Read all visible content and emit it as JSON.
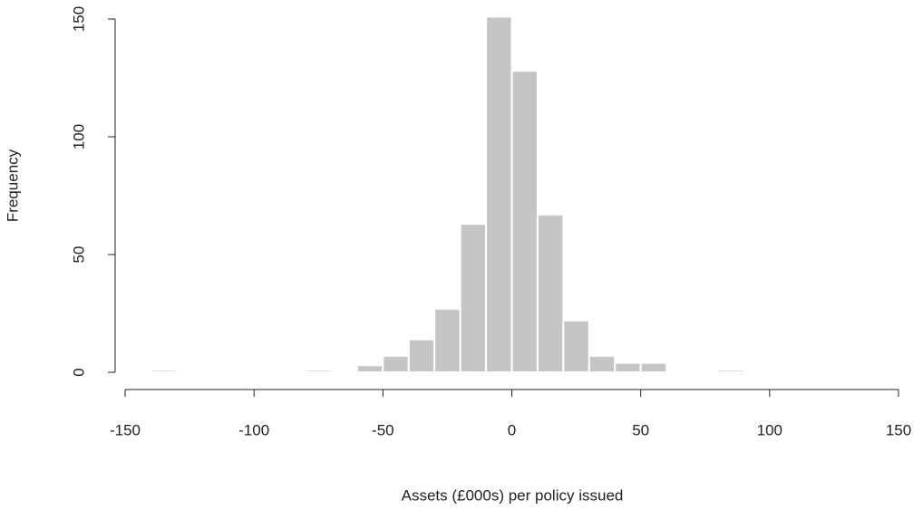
{
  "chart_data": {
    "type": "histogram",
    "xlabel": "Assets (£000s) per policy issued",
    "ylabel": "Frequency",
    "bins": [
      -150,
      -140,
      -130,
      -120,
      -110,
      -100,
      -90,
      -80,
      -70,
      -60,
      -50,
      -40,
      -30,
      -20,
      -10,
      0,
      10,
      20,
      30,
      40,
      50,
      60,
      70,
      80,
      90,
      100,
      110,
      120,
      130,
      140,
      150
    ],
    "values": [
      0,
      1,
      0,
      0,
      0,
      0,
      0,
      1,
      0,
      3,
      7,
      14,
      27,
      63,
      151,
      128,
      67,
      22,
      7,
      4,
      4,
      0,
      0,
      1,
      0,
      0,
      0,
      0,
      0,
      0
    ],
    "color": "#c4c5c7",
    "xlim": [
      -150,
      150
    ],
    "xticks": [
      -150,
      -100,
      -50,
      0,
      50,
      100,
      150
    ],
    "ylim": [
      0,
      150
    ],
    "yticks": [
      0,
      50,
      100,
      150
    ]
  }
}
